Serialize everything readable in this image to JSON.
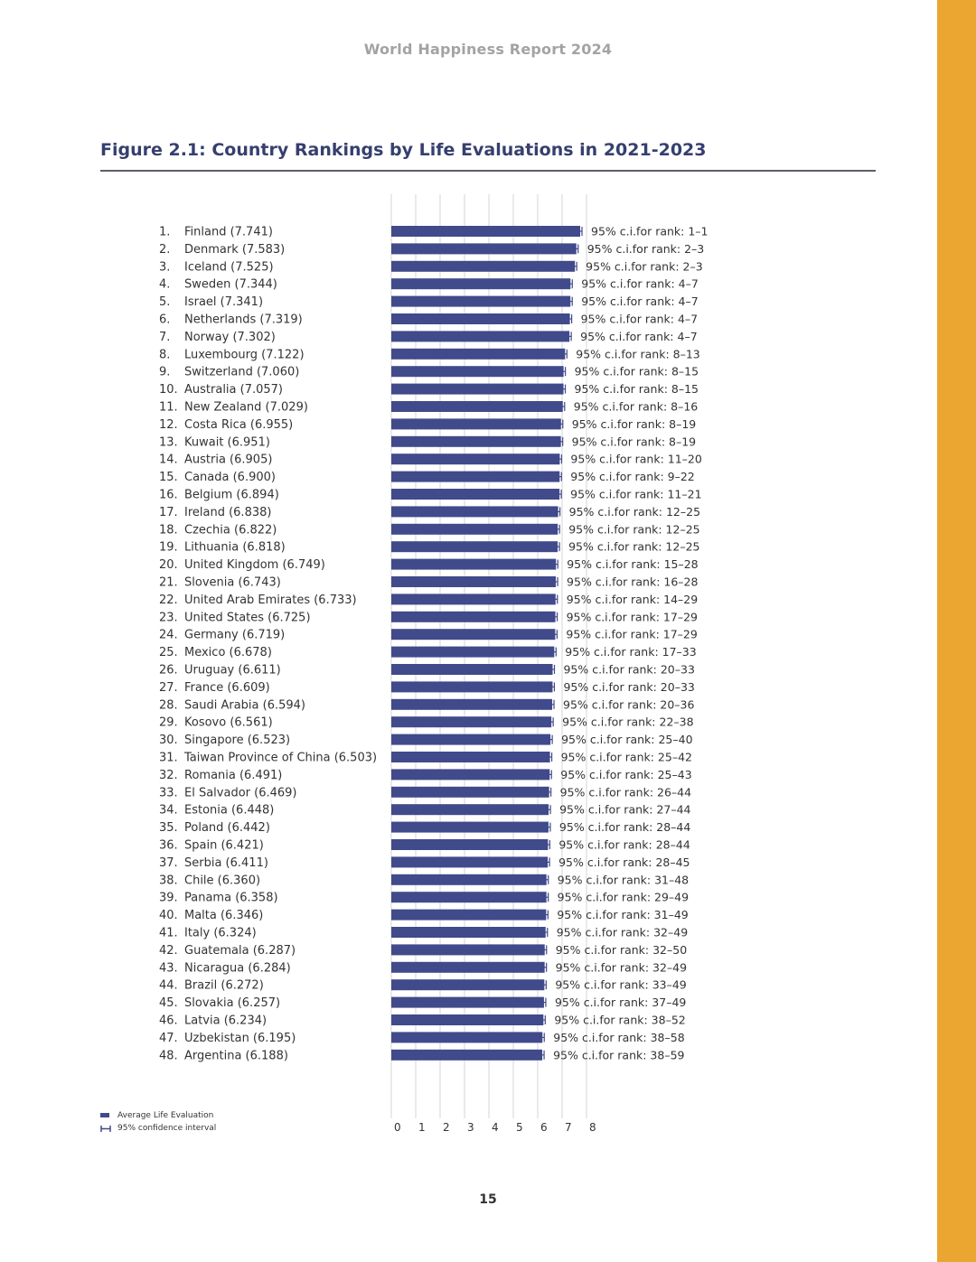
{
  "header": {
    "running_title": "World Happiness Report 2024"
  },
  "figure": {
    "title": "Figure 2.1: Country Rankings by Life Evaluations in 2021-2023"
  },
  "legend": {
    "bar_label": "Average Life Evaluation",
    "ci_label": "95% confidence interval"
  },
  "page_number": "15",
  "colors": {
    "bar": "#414a8a",
    "accent_sidebar": "#eba531",
    "title": "#363f6e",
    "grid": "#d6d6d6",
    "text": "#333333",
    "header": "#a3a3a3"
  },
  "chart_data": {
    "type": "bar",
    "orientation": "horizontal",
    "title": "Figure 2.1: Country Rankings by Life Evaluations in 2021-2023",
    "xlim": [
      0,
      8
    ],
    "x_ticks": [
      "0",
      "1",
      "2",
      "3",
      "4",
      "5",
      "6",
      "7",
      "8"
    ],
    "grid": true,
    "legend_position": "bottom-left",
    "series": [
      {
        "name": "Average Life Evaluation",
        "values": [
          7.741,
          7.583,
          7.525,
          7.344,
          7.341,
          7.319,
          7.302,
          7.122,
          7.06,
          7.057,
          7.029,
          6.955,
          6.951,
          6.905,
          6.9,
          6.894,
          6.838,
          6.822,
          6.818,
          6.749,
          6.743,
          6.733,
          6.725,
          6.719,
          6.678,
          6.611,
          6.609,
          6.594,
          6.561,
          6.523,
          6.503,
          6.491,
          6.469,
          6.448,
          6.442,
          6.421,
          6.411,
          6.36,
          6.358,
          6.346,
          6.324,
          6.287,
          6.284,
          6.272,
          6.257,
          6.234,
          6.195,
          6.188
        ]
      }
    ],
    "ranks": [
      "1.",
      "2.",
      "3.",
      "4.",
      "5.",
      "6.",
      "7.",
      "8.",
      "9.",
      "10.",
      "11.",
      "12.",
      "13.",
      "14.",
      "15.",
      "16.",
      "17.",
      "18.",
      "19.",
      "20.",
      "21.",
      "22.",
      "23.",
      "24.",
      "25.",
      "26.",
      "27.",
      "28.",
      "29.",
      "30.",
      "31.",
      "32.",
      "33.",
      "34.",
      "35.",
      "36.",
      "37.",
      "38.",
      "39.",
      "40.",
      "41.",
      "42.",
      "43.",
      "44.",
      "45.",
      "46.",
      "47.",
      "48."
    ],
    "categories": [
      "Finland (7.741)",
      "Denmark (7.583)",
      "Iceland (7.525)",
      "Sweden (7.344)",
      "Israel (7.341)",
      "Netherlands (7.319)",
      "Norway (7.302)",
      "Luxembourg (7.122)",
      "Switzerland (7.060)",
      "Australia (7.057)",
      "New Zealand (7.029)",
      "Costa Rica (6.955)",
      "Kuwait (6.951)",
      "Austria (6.905)",
      "Canada (6.900)",
      "Belgium (6.894)",
      "Ireland (6.838)",
      "Czechia (6.822)",
      "Lithuania (6.818)",
      "United Kingdom (6.749)",
      "Slovenia (6.743)",
      "United Arab Emirates (6.733)",
      "United States (6.725)",
      "Germany (6.719)",
      "Mexico (6.678)",
      "Uruguay (6.611)",
      "France (6.609)",
      "Saudi Arabia (6.594)",
      "Kosovo (6.561)",
      "Singapore (6.523)",
      "Taiwan Province of China (6.503)",
      "Romania (6.491)",
      "El Salvador (6.469)",
      "Estonia (6.448)",
      "Poland (6.442)",
      "Spain (6.421)",
      "Serbia (6.411)",
      "Chile (6.360)",
      "Panama (6.358)",
      "Malta (6.346)",
      "Italy (6.324)",
      "Guatemala (6.287)",
      "Nicaragua (6.284)",
      "Brazil (6.272)",
      "Slovakia (6.257)",
      "Latvia (6.234)",
      "Uzbekistan (6.195)",
      "Argentina (6.188)"
    ],
    "ci_labels": [
      "95% c.i.for rank: 1–1",
      "95% c.i.for rank: 2–3",
      "95% c.i.for rank: 2–3",
      "95% c.i.for rank: 4–7",
      "95% c.i.for rank: 4–7",
      "95% c.i.for rank: 4–7",
      "95% c.i.for rank: 4–7",
      "95% c.i.for rank: 8–13",
      "95% c.i.for rank: 8–15",
      "95% c.i.for rank: 8–15",
      "95% c.i.for rank: 8–16",
      "95% c.i.for rank: 8–19",
      "95% c.i.for rank: 8–19",
      "95% c.i.for rank: 11–20",
      "95% c.i.for rank: 9–22",
      "95% c.i.for rank: 11–21",
      "95% c.i.for rank: 12–25",
      "95% c.i.for rank: 12–25",
      "95% c.i.for rank: 12–25",
      "95% c.i.for rank: 15–28",
      "95% c.i.for rank: 16–28",
      "95% c.i.for rank: 14–29",
      "95% c.i.for rank: 17–29",
      "95% c.i.for rank: 17–29",
      "95% c.i.for rank: 17–33",
      "95% c.i.for rank: 20–33",
      "95% c.i.for rank: 20–33",
      "95% c.i.for rank: 20–36",
      "95% c.i.for rank: 22–38",
      "95% c.i.for rank: 25–40",
      "95% c.i.for rank: 25–42",
      "95% c.i.for rank: 25–43",
      "95% c.i.for rank: 26–44",
      "95% c.i.for rank: 27–44",
      "95% c.i.for rank: 28–44",
      "95% c.i.for rank: 28–44",
      "95% c.i.for rank: 28–45",
      "95% c.i.for rank: 31–48",
      "95% c.i.for rank: 29–49",
      "95% c.i.for rank: 31–49",
      "95% c.i.for rank: 32–49",
      "95% c.i.for rank: 32–50",
      "95% c.i.for rank: 32–49",
      "95% c.i.for rank: 33–49",
      "95% c.i.for rank: 37–49",
      "95% c.i.for rank: 38–52",
      "95% c.i.for rank: 38–58",
      "95% c.i.for rank: 38–59"
    ]
  }
}
